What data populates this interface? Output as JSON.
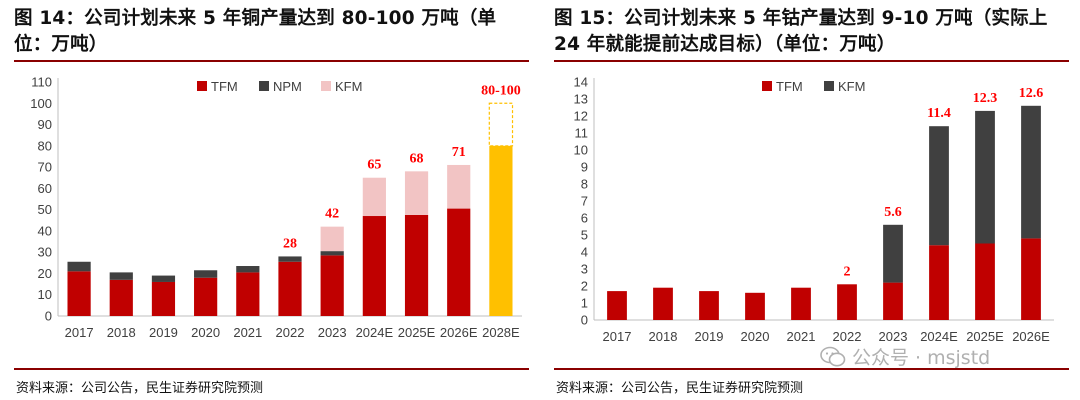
{
  "panels": [
    {
      "title": "图 14：公司计划未来 5 年铜产量达到 80-100 万吨（单位：万吨）",
      "source": "资料来源：公司公告，民生证券研究院预测"
    },
    {
      "title": "图 15：公司计划未来 5 年钴产量达到 9-10 万吨（实际上 24 年就能提前达成目标）（单位：万吨）",
      "source": "资料来源：公司公告，民生证券研究院预测"
    }
  ],
  "watermark": "公众号 · msjstd",
  "chart_data": [
    {
      "type": "bar",
      "stacked": true,
      "categories": [
        "2017",
        "2018",
        "2019",
        "2020",
        "2021",
        "2022",
        "2023",
        "2024E",
        "2025E",
        "2026E",
        "2028E"
      ],
      "series": [
        {
          "name": "TFM",
          "color": "#c00000",
          "values": [
            21,
            17,
            16,
            18,
            20.5,
            25.5,
            28.5,
            47,
            47.5,
            50.5,
            0
          ]
        },
        {
          "name": "NPM",
          "color": "#404040",
          "values": [
            4.5,
            3.5,
            3,
            3.5,
            3,
            2.5,
            2,
            0,
            0,
            0,
            0
          ]
        },
        {
          "name": "KFM",
          "color": "#f2c4c4",
          "values": [
            0,
            0,
            0,
            0,
            0,
            0,
            11.5,
            18,
            20.5,
            20.5,
            0
          ]
        },
        {
          "name": "",
          "color": "#ffc000",
          "values": [
            0,
            0,
            0,
            0,
            0,
            0,
            0,
            0,
            0,
            0,
            80
          ]
        },
        {
          "name": "",
          "color": "none",
          "stroke": "#ffc000",
          "dashed": true,
          "values": [
            0,
            0,
            0,
            0,
            0,
            0,
            0,
            0,
            0,
            0,
            20
          ]
        }
      ],
      "data_labels": [
        "",
        "",
        "",
        "",
        "",
        "28",
        "42",
        "65",
        "68",
        "71",
        "80-100"
      ],
      "ylim": [
        0,
        110
      ],
      "yticks": [
        0,
        10,
        20,
        30,
        40,
        50,
        60,
        70,
        80,
        90,
        100,
        110
      ],
      "legend": [
        "TFM",
        "NPM",
        "KFM"
      ],
      "legend_position": "top-center",
      "label_color": "#ff0000"
    },
    {
      "type": "bar",
      "stacked": true,
      "categories": [
        "2017",
        "2018",
        "2019",
        "2020",
        "2021",
        "2022",
        "2023",
        "2024E",
        "2025E",
        "2026E"
      ],
      "series": [
        {
          "name": "TFM",
          "color": "#c00000",
          "values": [
            1.7,
            1.9,
            1.7,
            1.6,
            1.9,
            2.1,
            2.2,
            4.4,
            4.5,
            4.8
          ]
        },
        {
          "name": "KFM",
          "color": "#404040",
          "values": [
            0,
            0,
            0,
            0,
            0,
            0,
            3.4,
            7.0,
            7.8,
            7.8
          ]
        }
      ],
      "data_labels": [
        "",
        "",
        "",
        "",
        "",
        "2",
        "5.6",
        "11.4",
        "12.3",
        "12.6"
      ],
      "ylim": [
        0,
        14
      ],
      "yticks": [
        0,
        1,
        2,
        3,
        4,
        5,
        6,
        7,
        8,
        9,
        10,
        11,
        12,
        13,
        14
      ],
      "legend": [
        "TFM",
        "KFM"
      ],
      "legend_position": "top-center",
      "label_color": "#ff0000"
    }
  ]
}
